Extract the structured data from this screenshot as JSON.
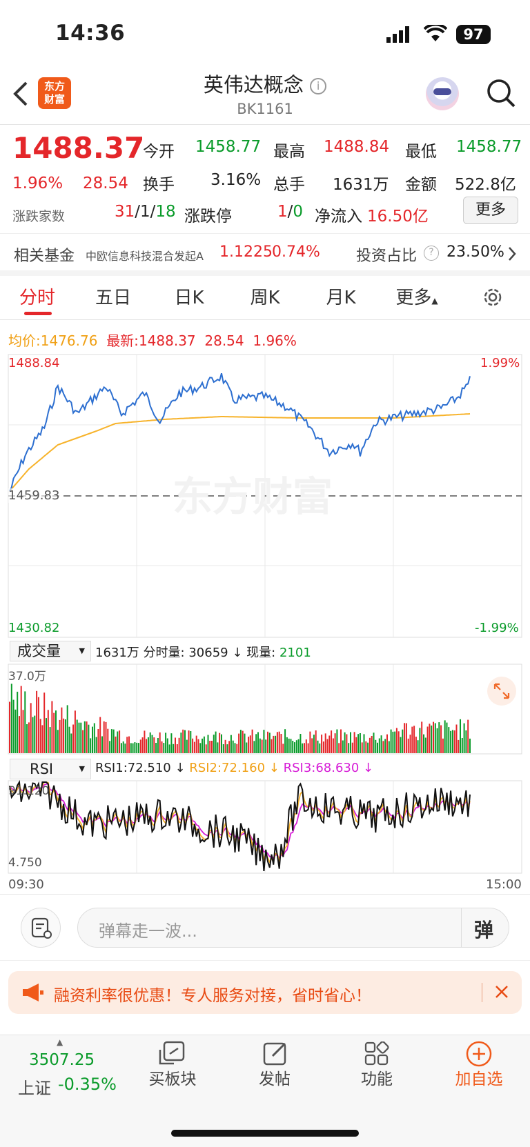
{
  "status": {
    "time": "14:36",
    "battery": "97"
  },
  "header": {
    "title": "英伟达概念",
    "code": "BK1161",
    "logo_text": "东方财富"
  },
  "quote": {
    "price": "1488.37",
    "pct": "1.96%",
    "change": "28.54",
    "open_label": "今开",
    "open": "1458.77",
    "high_label": "最高",
    "high": "1488.84",
    "low_label": "最低",
    "low": "1458.77",
    "turnover_label": "换手",
    "turnover": "3.16%",
    "volume_label": "总手",
    "volume": "1631万",
    "amount_label": "金额",
    "amount": "522.8亿",
    "breadth_label": "涨跌家数",
    "breadth_up": "31",
    "breadth_flat": "1",
    "breadth_down": "18",
    "limit_label": "涨跌停",
    "limit_up": "1",
    "limit_down": "0",
    "inflow_label": "净流入",
    "inflow": "16.50亿",
    "more": "更多"
  },
  "fund": {
    "label": "相关基金",
    "name": "中欧信息科技混合发起A",
    "nav": "1.1225",
    "pct": "0.74%",
    "ratio_label": "投资占比",
    "ratio": "23.50%"
  },
  "tabs": [
    "分时",
    "五日",
    "日K",
    "周K",
    "月K",
    "更多"
  ],
  "intraday": {
    "avg_label": "均价:",
    "avg": "1476.76",
    "latest_label": "最新:",
    "latest": "1488.37",
    "change": "28.54",
    "pct": "1.96%",
    "y_high": "1488.84",
    "y_mid": "1459.83",
    "y_low": "1430.82",
    "pct_high": "1.99%",
    "pct_low": "-1.99%",
    "watermark": "东方财富"
  },
  "volume_panel": {
    "select": "成交量",
    "total": "1631万",
    "minute_label": "分时量:",
    "minute": "30659",
    "current_label": "现量:",
    "current": "2101",
    "ymax": "37.0万"
  },
  "rsi_panel": {
    "select": "RSI",
    "rsi1_label": "RSI1:",
    "rsi1": "72.510",
    "rsi2_label": "RSI2:",
    "rsi2": "72.160",
    "rsi3_label": "RSI3:",
    "rsi3": "68.630",
    "ymax": "91.120",
    "ymin": "4.750",
    "x_start": "09:30",
    "x_end": "15:00"
  },
  "comment": {
    "placeholder": "弹幕走一波..."
  },
  "promo": {
    "text": "融资利率很优惠！专人服务对接，省时省心！"
  },
  "bottom": {
    "index_value": "3507.25",
    "index_name": "上证",
    "index_pct": "-0.35%",
    "items": [
      "买板块",
      "发帖",
      "功能",
      "加自选"
    ]
  },
  "colors": {
    "up": "#e4262a",
    "down": "#0a9b2a",
    "price_line": "#2d6fd0",
    "avg_line": "#f7b32b",
    "rsi1": "#111111",
    "rsi2": "#f7b32b",
    "rsi3": "#d61cd6"
  }
}
